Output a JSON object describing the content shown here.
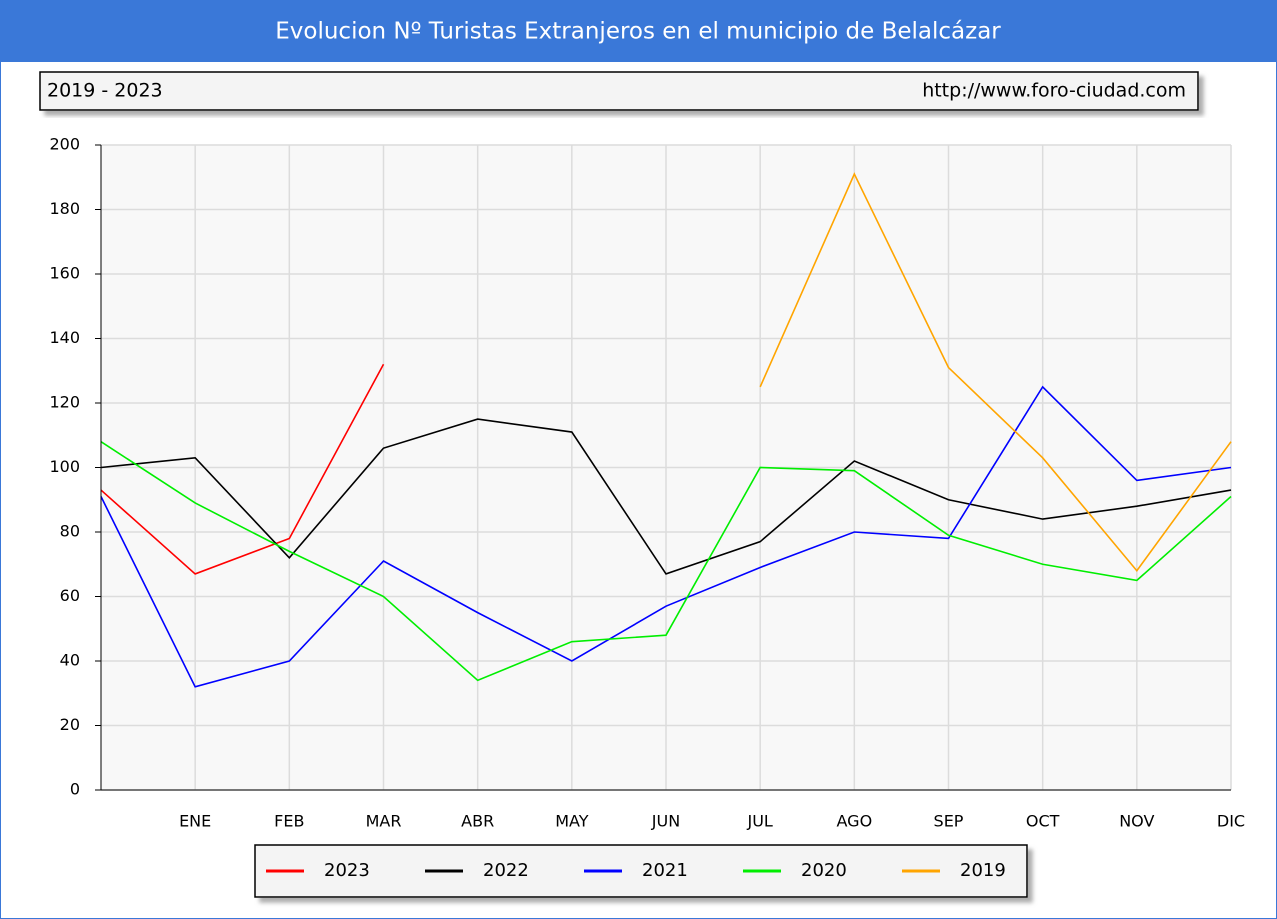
{
  "chart_data": {
    "type": "line",
    "title": "Evolucion Nº Turistas Extranjeros en el municipio de Belalcázar",
    "subtitle": "2019 - 2023",
    "source": "http://www.foro-ciudad.com",
    "categories": [
      null,
      "ENE",
      "FEB",
      "MAR",
      "ABR",
      "MAY",
      "JUN",
      "JUL",
      "AGO",
      "SEP",
      "OCT",
      "NOV",
      "DIC"
    ],
    "series": [
      {
        "name": "2023",
        "color": "#ff0000",
        "values": [
          93,
          67,
          78,
          132,
          null,
          null,
          null,
          null,
          null,
          null,
          null,
          null,
          null
        ]
      },
      {
        "name": "2022",
        "color": "#000000",
        "values": [
          100,
          103,
          72,
          106,
          115,
          111,
          67,
          77,
          102,
          90,
          84,
          88,
          93
        ]
      },
      {
        "name": "2021",
        "color": "#0000ff",
        "values": [
          91,
          32,
          40,
          71,
          55,
          40,
          57,
          69,
          80,
          78,
          125,
          96,
          100
        ]
      },
      {
        "name": "2020",
        "color": "#00ee00",
        "values": [
          108,
          89,
          74,
          60,
          34,
          46,
          48,
          100,
          99,
          79,
          70,
          65,
          91
        ]
      },
      {
        "name": "2019",
        "color": "#ffa500",
        "values": [
          null,
          null,
          null,
          null,
          null,
          null,
          null,
          125,
          191,
          131,
          103,
          68,
          108
        ]
      }
    ],
    "ylim": [
      0,
      200
    ],
    "yticks": [
      0,
      20,
      40,
      60,
      80,
      100,
      120,
      140,
      160,
      180,
      200
    ],
    "grid": true
  }
}
